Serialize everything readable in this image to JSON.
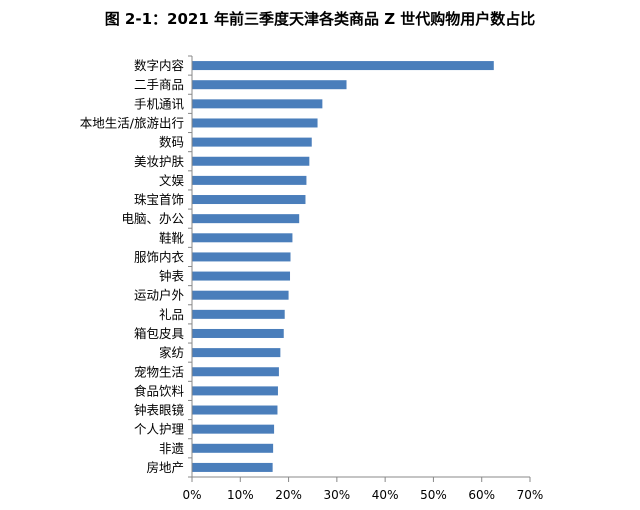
{
  "title": "图 2-1：2021 年前三季度天津各类商品 Z 世代购物用户数占比",
  "chart_data": {
    "type": "bar",
    "orientation": "horizontal",
    "title": "图 2-1：2021 年前三季度天津各类商品 Z 世代购物用户数占比",
    "categories": [
      "数字内容",
      "二手商品",
      "手机通讯",
      "本地生活/旅游出行",
      "数码",
      "美妆护肤",
      "文娱",
      "珠宝首饰",
      "电脑、办公",
      "鞋靴",
      "服饰内衣",
      "钟表",
      "运动户外",
      "礼品",
      "箱包皮具",
      "家纺",
      "宠物生活",
      "食品饮料",
      "钟表眼镜",
      "个人护理",
      "非遗",
      "房地产"
    ],
    "values": [
      62.5,
      32.0,
      27.0,
      26.0,
      24.8,
      24.3,
      23.7,
      23.5,
      22.2,
      20.8,
      20.4,
      20.3,
      20.0,
      19.2,
      19.0,
      18.3,
      18.0,
      17.8,
      17.7,
      17.0,
      16.8,
      16.7
    ],
    "xlim": [
      0,
      70
    ],
    "xticks": [
      "0%",
      "10%",
      "20%",
      "30%",
      "40%",
      "50%",
      "60%",
      "70%"
    ],
    "grid": false,
    "legend": "none",
    "bar_color": "#4a7ebb"
  }
}
